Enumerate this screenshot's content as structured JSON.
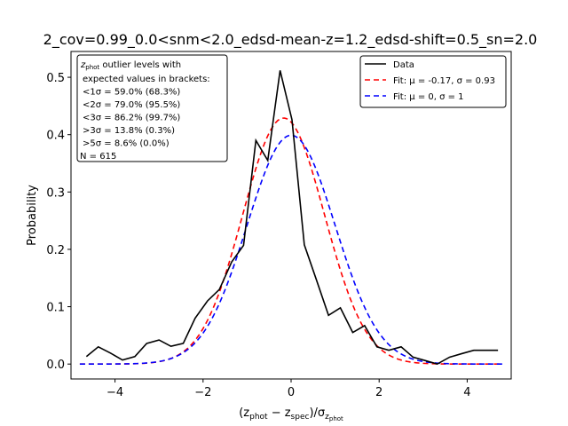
{
  "chart_data": {
    "type": "line",
    "title": "2_cov=0.99_0.0<snm<2.0_edsd-mean-z=1.2_edsd-shift=0.5_sn=2.0",
    "ylabel": "Probability",
    "xlabel_parts": {
      "pre": "(z",
      "s1": "phot",
      "mid": " − z",
      "s2": "spec",
      "post": ")/σ",
      "s3": "z",
      "s4": "phot"
    },
    "xlim": [
      -5,
      5
    ],
    "ylim": [
      -0.026,
      0.545
    ],
    "xticks": [
      -4,
      -2,
      0,
      2,
      4
    ],
    "xtick_labels": [
      "−4",
      "−2",
      "0",
      "2",
      "4"
    ],
    "yticks": [
      0.0,
      0.1,
      0.2,
      0.3,
      0.4,
      0.5
    ],
    "ytick_labels": [
      "0.0",
      "0.1",
      "0.2",
      "0.3",
      "0.4",
      "0.5"
    ],
    "series": [
      {
        "name": "Data",
        "color": "#000000",
        "dash": "",
        "x": [
          -4.65,
          -4.38,
          -4.1,
          -3.83,
          -3.55,
          -3.28,
          -3.0,
          -2.73,
          -2.45,
          -2.18,
          -1.9,
          -1.63,
          -1.35,
          -1.08,
          -0.8,
          -0.53,
          -0.25,
          0.02,
          0.3,
          0.57,
          0.85,
          1.12,
          1.4,
          1.67,
          1.95,
          2.22,
          2.5,
          2.77,
          3.05,
          3.32,
          3.6,
          3.87,
          4.15,
          4.42,
          4.7
        ],
        "y": [
          0.013,
          0.03,
          0.019,
          0.007,
          0.013,
          0.036,
          0.042,
          0.031,
          0.036,
          0.08,
          0.11,
          0.13,
          0.178,
          0.207,
          0.39,
          0.355,
          0.512,
          0.426,
          0.208,
          0.148,
          0.085,
          0.098,
          0.055,
          0.067,
          0.03,
          0.024,
          0.03,
          0.012,
          0.006,
          0.0,
          0.012,
          0.018,
          0.024,
          0.024,
          0.024
        ]
      },
      {
        "name": "Fit: μ = -0.17, σ = 0.93",
        "color": "#ff0000",
        "dash": "6,4",
        "mu": -0.17,
        "sigma": 0.93
      },
      {
        "name": "Fit: μ = 0, σ = 1",
        "color": "#0000ff",
        "dash": "6,4",
        "mu": 0,
        "sigma": 1
      }
    ],
    "stats_box": {
      "header_sub": "phot",
      "header_tail": " outlier levels with",
      "lines": [
        "expected values in brackets:",
        "<1σ = 59.0% (68.3%)",
        "<2σ = 79.0% (95.5%)",
        "<3σ = 86.2% (99.7%)",
        ">3σ = 13.8% (0.3%)",
        ">5σ = 8.6% (0.0%)",
        "N = 615"
      ]
    },
    "legend_position": "upper right"
  }
}
